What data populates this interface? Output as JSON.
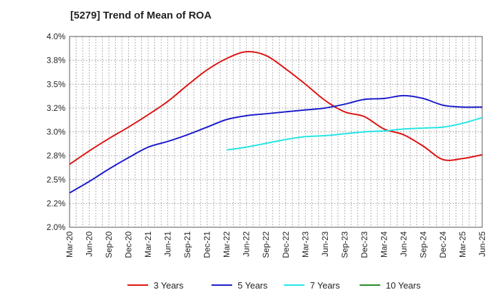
{
  "chart_data": {
    "type": "line",
    "title": "[5279]  Trend of Mean of ROA",
    "xlabel": "",
    "ylabel": "",
    "ylim": [
      2.0,
      4.0
    ],
    "y_ticks": [
      "2.0%",
      "2.2%",
      "2.5%",
      "2.8%",
      "3.0%",
      "3.2%",
      "3.5%",
      "3.8%",
      "4.0%"
    ],
    "x_ticks": [
      "Mar-20",
      "Jun-20",
      "Sep-20",
      "Dec-20",
      "Mar-21",
      "Jun-21",
      "Sep-21",
      "Dec-21",
      "Mar-22",
      "Jun-22",
      "Sep-22",
      "Dec-22",
      "Mar-23",
      "Jun-23",
      "Sep-23",
      "Dec-23",
      "Mar-24",
      "Jun-24",
      "Sep-24",
      "Dec-24",
      "Mar-25",
      "Jun-25"
    ],
    "grid": true,
    "legend_position": "bottom",
    "series": [
      {
        "name": "3 Years",
        "color": "#dd1111",
        "points": [
          [
            "Mar-20",
            2.66
          ],
          [
            "Jun-20",
            2.8
          ],
          [
            "Sep-20",
            2.93
          ],
          [
            "Dec-20",
            3.05
          ],
          [
            "Mar-21",
            3.18
          ],
          [
            "Jun-21",
            3.32
          ],
          [
            "Sep-21",
            3.49
          ],
          [
            "Dec-21",
            3.65
          ],
          [
            "Mar-22",
            3.77
          ],
          [
            "Jun-22",
            3.84
          ],
          [
            "Sep-22",
            3.8
          ],
          [
            "Dec-22",
            3.66
          ],
          [
            "Mar-23",
            3.5
          ],
          [
            "Jun-23",
            3.33
          ],
          [
            "Sep-23",
            3.21
          ],
          [
            "Dec-23",
            3.16
          ],
          [
            "Mar-24",
            3.03
          ],
          [
            "Jun-24",
            2.97
          ],
          [
            "Sep-24",
            2.85
          ],
          [
            "Dec-24",
            2.71
          ],
          [
            "Mar-25",
            2.72
          ],
          [
            "Jun-25",
            2.76
          ]
        ]
      },
      {
        "name": "5 Years",
        "color": "#1a1acc",
        "points": [
          [
            "Mar-20",
            2.36
          ],
          [
            "Jun-20",
            2.48
          ],
          [
            "Sep-20",
            2.61
          ],
          [
            "Dec-20",
            2.73
          ],
          [
            "Mar-21",
            2.84
          ],
          [
            "Jun-21",
            2.9
          ],
          [
            "Sep-21",
            2.97
          ],
          [
            "Dec-21",
            3.05
          ],
          [
            "Mar-22",
            3.13
          ],
          [
            "Jun-22",
            3.17
          ],
          [
            "Sep-22",
            3.19
          ],
          [
            "Dec-22",
            3.21
          ],
          [
            "Mar-23",
            3.23
          ],
          [
            "Jun-23",
            3.25
          ],
          [
            "Sep-23",
            3.29
          ],
          [
            "Dec-23",
            3.34
          ],
          [
            "Mar-24",
            3.35
          ],
          [
            "Jun-24",
            3.38
          ],
          [
            "Sep-24",
            3.35
          ],
          [
            "Dec-24",
            3.28
          ],
          [
            "Mar-25",
            3.26
          ],
          [
            "Jun-25",
            3.26
          ]
        ]
      },
      {
        "name": "7 Years",
        "color": "#22e5e5",
        "points": [
          [
            "Mar-22",
            2.81
          ],
          [
            "Jun-22",
            2.84
          ],
          [
            "Sep-22",
            2.88
          ],
          [
            "Dec-22",
            2.92
          ],
          [
            "Mar-23",
            2.95
          ],
          [
            "Jun-23",
            2.96
          ],
          [
            "Sep-23",
            2.98
          ],
          [
            "Dec-23",
            3.0
          ],
          [
            "Mar-24",
            3.01
          ],
          [
            "Jun-24",
            3.03
          ],
          [
            "Sep-24",
            3.04
          ],
          [
            "Dec-24",
            3.05
          ],
          [
            "Mar-25",
            3.09
          ],
          [
            "Jun-25",
            3.15
          ]
        ]
      },
      {
        "name": "10 Years",
        "color": "#228822",
        "points": []
      }
    ]
  }
}
